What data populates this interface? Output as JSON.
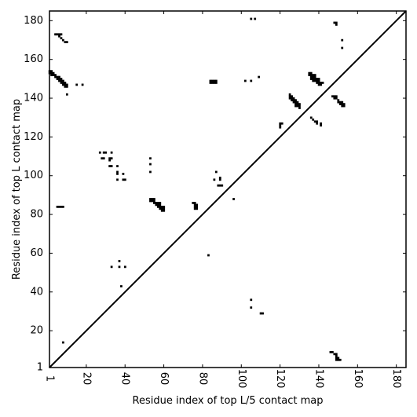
{
  "chart_data": {
    "type": "heatmap",
    "xlabel": "Residue index of top L/5 contact map",
    "ylabel": "Residue index of top L contact map",
    "xlim": [
      1,
      185
    ],
    "ylim": [
      1,
      185
    ],
    "x_ticks": [
      1,
      20,
      40,
      60,
      80,
      100,
      120,
      140,
      160,
      180
    ],
    "x_tick_labels": [
      "1",
      "20",
      "40",
      "60",
      "80",
      "100",
      "120",
      "140",
      "160",
      "180"
    ],
    "y_ticks": [
      1,
      20,
      40,
      60,
      80,
      100,
      120,
      140,
      160,
      180
    ],
    "y_tick_labels": [
      "1",
      "20",
      "40",
      "60",
      "80",
      "100",
      "120",
      "140",
      "160",
      "180"
    ],
    "diagonal": true,
    "cell_color": "#000000",
    "background_color": "#ffffff",
    "contacts": [
      [
        1,
        154
      ],
      [
        2,
        154
      ],
      [
        1,
        153
      ],
      [
        2,
        153
      ],
      [
        3,
        153
      ],
      [
        2,
        152
      ],
      [
        3,
        152
      ],
      [
        4,
        152
      ],
      [
        4,
        151
      ],
      [
        5,
        151
      ],
      [
        6,
        151
      ],
      [
        5,
        150
      ],
      [
        6,
        150
      ],
      [
        7,
        150
      ],
      [
        6,
        149
      ],
      [
        7,
        149
      ],
      [
        8,
        149
      ],
      [
        7,
        148
      ],
      [
        8,
        148
      ],
      [
        9,
        148
      ],
      [
        8,
        147
      ],
      [
        9,
        147
      ],
      [
        10,
        147
      ],
      [
        9,
        146
      ],
      [
        10,
        146
      ],
      [
        4,
        173
      ],
      [
        5,
        173
      ],
      [
        6,
        173
      ],
      [
        7,
        173
      ],
      [
        6,
        172
      ],
      [
        7,
        171
      ],
      [
        8,
        170
      ],
      [
        9,
        169
      ],
      [
        10,
        169
      ],
      [
        15,
        147
      ],
      [
        18,
        147
      ],
      [
        10,
        142
      ],
      [
        5,
        84
      ],
      [
        6,
        84
      ],
      [
        7,
        84
      ],
      [
        8,
        84
      ],
      [
        8,
        14
      ],
      [
        27,
        112
      ],
      [
        29,
        112
      ],
      [
        30,
        112
      ],
      [
        33,
        112
      ],
      [
        28,
        109
      ],
      [
        29,
        109
      ],
      [
        32,
        109
      ],
      [
        33,
        109
      ],
      [
        32,
        108
      ],
      [
        32,
        105
      ],
      [
        33,
        105
      ],
      [
        36,
        105
      ],
      [
        36,
        102
      ],
      [
        36,
        101
      ],
      [
        39,
        101
      ],
      [
        36,
        98
      ],
      [
        39,
        98
      ],
      [
        40,
        98
      ],
      [
        53,
        109
      ],
      [
        53,
        106
      ],
      [
        53,
        102
      ],
      [
        53,
        88
      ],
      [
        54,
        88
      ],
      [
        55,
        88
      ],
      [
        53,
        87
      ],
      [
        54,
        87
      ],
      [
        55,
        87
      ],
      [
        55,
        86
      ],
      [
        56,
        86
      ],
      [
        57,
        86
      ],
      [
        58,
        86
      ],
      [
        56,
        85
      ],
      [
        57,
        85
      ],
      [
        58,
        85
      ],
      [
        57,
        84
      ],
      [
        58,
        84
      ],
      [
        59,
        84
      ],
      [
        60,
        84
      ],
      [
        58,
        83
      ],
      [
        59,
        83
      ],
      [
        60,
        83
      ],
      [
        59,
        82
      ],
      [
        60,
        82
      ],
      [
        75,
        86
      ],
      [
        76,
        86
      ],
      [
        76,
        85
      ],
      [
        77,
        85
      ],
      [
        76,
        84
      ],
      [
        77,
        84
      ],
      [
        76,
        83
      ],
      [
        77,
        83
      ],
      [
        33,
        53
      ],
      [
        37,
        53
      ],
      [
        40,
        53
      ],
      [
        37,
        56
      ],
      [
        38,
        43
      ],
      [
        84,
        149
      ],
      [
        85,
        149
      ],
      [
        86,
        149
      ],
      [
        87,
        149
      ],
      [
        84,
        148
      ],
      [
        85,
        148
      ],
      [
        86,
        148
      ],
      [
        87,
        148
      ],
      [
        102,
        149
      ],
      [
        105,
        149
      ],
      [
        109,
        151
      ],
      [
        105,
        181
      ],
      [
        107,
        181
      ],
      [
        87,
        102
      ],
      [
        86,
        98
      ],
      [
        89,
        99
      ],
      [
        89,
        98
      ],
      [
        88,
        95
      ],
      [
        89,
        95
      ],
      [
        90,
        95
      ],
      [
        96,
        88
      ],
      [
        83,
        59
      ],
      [
        105,
        36
      ],
      [
        105,
        32
      ],
      [
        110,
        29
      ],
      [
        111,
        29
      ],
      [
        120,
        127
      ],
      [
        121,
        127
      ],
      [
        120,
        126
      ],
      [
        120,
        125
      ],
      [
        125,
        142
      ],
      [
        125,
        141
      ],
      [
        126,
        141
      ],
      [
        125,
        140
      ],
      [
        126,
        140
      ],
      [
        127,
        140
      ],
      [
        126,
        139
      ],
      [
        127,
        139
      ],
      [
        128,
        139
      ],
      [
        127,
        138
      ],
      [
        128,
        138
      ],
      [
        129,
        138
      ],
      [
        128,
        137
      ],
      [
        129,
        137
      ],
      [
        130,
        137
      ],
      [
        128,
        136
      ],
      [
        129,
        136
      ],
      [
        130,
        136
      ],
      [
        130,
        135
      ],
      [
        135,
        153
      ],
      [
        136,
        153
      ],
      [
        135,
        152
      ],
      [
        136,
        152
      ],
      [
        137,
        152
      ],
      [
        138,
        152
      ],
      [
        136,
        151
      ],
      [
        137,
        151
      ],
      [
        138,
        151
      ],
      [
        136,
        150
      ],
      [
        137,
        150
      ],
      [
        138,
        150
      ],
      [
        139,
        150
      ],
      [
        140,
        150
      ],
      [
        137,
        149
      ],
      [
        138,
        149
      ],
      [
        139,
        149
      ],
      [
        140,
        149
      ],
      [
        139,
        148
      ],
      [
        140,
        148
      ],
      [
        141,
        148
      ],
      [
        142,
        148
      ],
      [
        140,
        147
      ],
      [
        141,
        147
      ],
      [
        136,
        130
      ],
      [
        137,
        129
      ],
      [
        138,
        128
      ],
      [
        139,
        128
      ],
      [
        139,
        127
      ],
      [
        141,
        127
      ],
      [
        141,
        126
      ],
      [
        147,
        141
      ],
      [
        148,
        141
      ],
      [
        149,
        141
      ],
      [
        148,
        140
      ],
      [
        149,
        140
      ],
      [
        150,
        139
      ],
      [
        150,
        138
      ],
      [
        151,
        138
      ],
      [
        152,
        138
      ],
      [
        151,
        137
      ],
      [
        152,
        137
      ],
      [
        153,
        137
      ],
      [
        152,
        136
      ],
      [
        153,
        136
      ],
      [
        148,
        179
      ],
      [
        149,
        179
      ],
      [
        149,
        178
      ],
      [
        152,
        170
      ],
      [
        152,
        166
      ],
      [
        146,
        9
      ],
      [
        147,
        9
      ],
      [
        148,
        8
      ],
      [
        149,
        8
      ],
      [
        149,
        7
      ],
      [
        149,
        6
      ],
      [
        150,
        6
      ],
      [
        149,
        5
      ],
      [
        150,
        5
      ],
      [
        151,
        5
      ]
    ]
  }
}
